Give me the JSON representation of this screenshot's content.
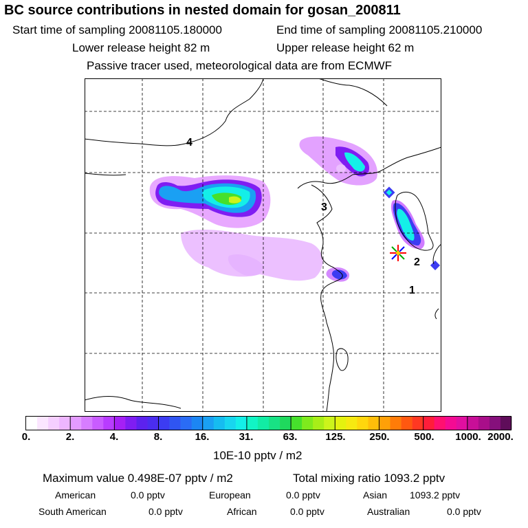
{
  "header": {
    "title": "BC  source contributions in nested domain for gosan_200811",
    "start_label": "Start time of sampling 20081105.180000",
    "end_label": "End time of sampling 20081105.210000",
    "lower_label": "Lower release height   82 m",
    "upper_label": "Upper release height   62 m",
    "tracer_note": "Passive tracer used, meteorological data are from ECMWF"
  },
  "map": {
    "region_labels": [
      "1",
      "2",
      "3",
      "4"
    ],
    "receptor": "receptor-star"
  },
  "colorbar": {
    "tick_labels": [
      "0.",
      "2.",
      "4.",
      "8.",
      "16.",
      "31.",
      "63.",
      "125.",
      "250.",
      "500.",
      "1000.",
      "2000."
    ],
    "colors": [
      "#ffffff",
      "#fbe6ff",
      "#f5cfff",
      "#eeb6ff",
      "#e49bff",
      "#d77dff",
      "#c95cff",
      "#b83cff",
      "#a520f5",
      "#7f1df2",
      "#5c22ee",
      "#4a2df0",
      "#3c3cf2",
      "#2f55f2",
      "#2a6cf5",
      "#1c86f3",
      "#1aa0f3",
      "#16bcf0",
      "#18d6ef",
      "#14efe8",
      "#11f5c5",
      "#12eca4",
      "#18e284",
      "#1fd95d",
      "#46e02c",
      "#7fea1d",
      "#a8ee18",
      "#ccf41b",
      "#e4f20f",
      "#f6e911",
      "#ffd60d",
      "#ffbe0a",
      "#ffa008",
      "#ff7c08",
      "#ff5810",
      "#ff3822",
      "#ff1d3a",
      "#ff1070",
      "#f40b93",
      "#e10fa0",
      "#c80f98",
      "#a90e8a",
      "#86107c",
      "#5f0d5a"
    ],
    "unit_label": "10E-10 pptv / m2"
  },
  "stats": {
    "max_value": "Maximum value  0.498E-07 pptv / m2",
    "total_mixing": "Total mixing ratio     1093.2 pptv",
    "american": "American",
    "american_val": "0.0 pptv",
    "european": "European",
    "european_val": "0.0 pptv",
    "asian": "Asian",
    "asian_val": "1093.2 pptv",
    "south_american": "South American",
    "south_american_val": "0.0 pptv",
    "african": "African",
    "african_val": "0.0 pptv",
    "australian": "Australian",
    "australian_val": "0.0 pptv"
  }
}
